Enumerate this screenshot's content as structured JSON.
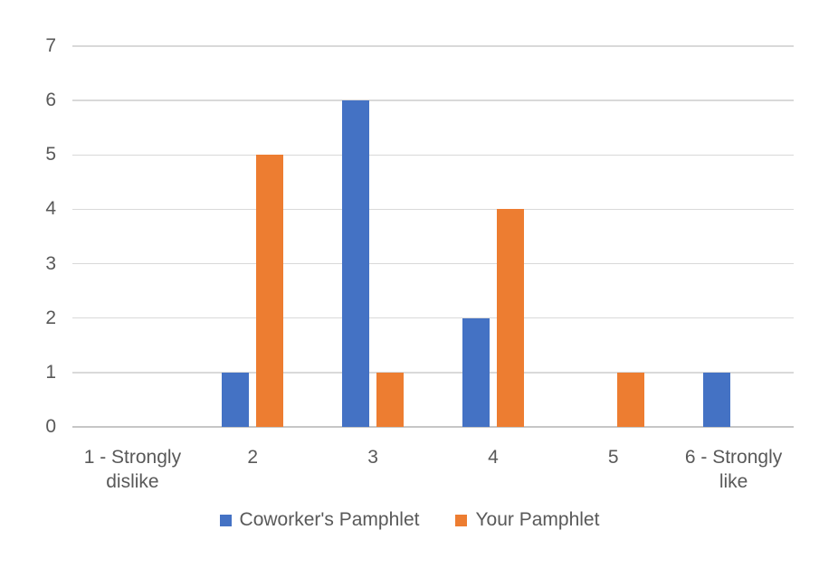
{
  "chart_data": {
    "type": "bar",
    "title": "",
    "xlabel": "",
    "ylabel": "",
    "categories": [
      "1 - Strongly dislike",
      "2",
      "3",
      "4",
      "5",
      "6 - Strongly like"
    ],
    "series": [
      {
        "name": "Coworker's Pamphlet",
        "color": "#4472C4",
        "values": [
          0,
          1,
          6,
          2,
          0,
          1
        ]
      },
      {
        "name": "Your Pamphlet",
        "color": "#ED7D31",
        "values": [
          0,
          5,
          1,
          4,
          1,
          0
        ]
      }
    ],
    "ylim": [
      0,
      7
    ],
    "yticks": [
      0,
      1,
      2,
      3,
      4,
      5,
      6,
      7
    ],
    "grid": true,
    "legend_position": "bottom"
  },
  "colors": {
    "axis_text": "#595959",
    "gridline": "#D9D9D9",
    "axis_line": "#C6C6C6",
    "background": "#FFFFFF"
  }
}
